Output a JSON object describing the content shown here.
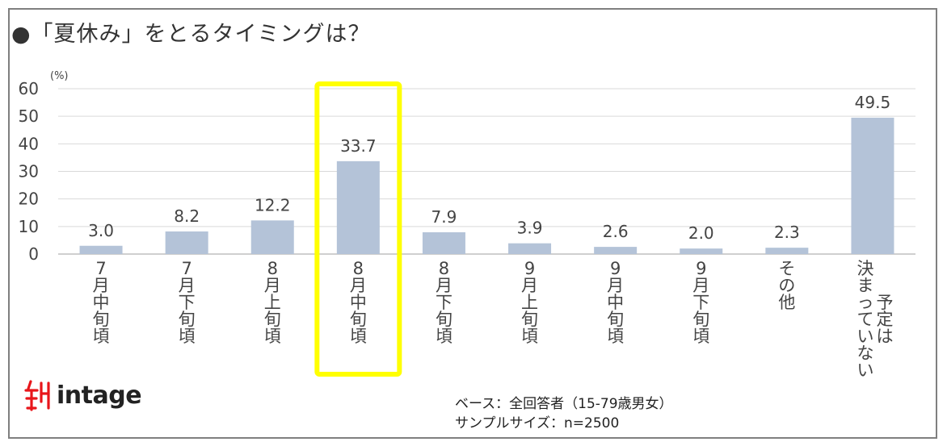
{
  "title": "●「夏休み」をとるタイミングは？",
  "unit_label": "(%)",
  "logo": {
    "text": "intage"
  },
  "notes": {
    "base": "ベース：全回答者（15-79歳男女）",
    "sample": "サンプルサイズ：n=2500"
  },
  "colors": {
    "bar": "#b4c3d8",
    "highlight": "#ffff00",
    "grid": "#d9d9d9"
  },
  "chart_data": {
    "type": "bar",
    "categories": [
      "7月中旬頃",
      "7月下旬頃",
      "8月上旬頃",
      "8月中旬頃",
      "8月下旬頃",
      "9月上旬頃",
      "9月中旬頃",
      "9月下旬頃",
      "その他",
      "決まっていない 予定は"
    ],
    "values": [
      3.0,
      8.2,
      12.2,
      33.7,
      7.9,
      3.9,
      2.6,
      2.0,
      2.3,
      49.5
    ],
    "value_labels": [
      "3.0",
      "8.2",
      "12.2",
      "33.7",
      "7.9",
      "3.9",
      "2.6",
      "2.0",
      "2.3",
      "49.5"
    ],
    "yticks": [
      "0",
      "10",
      "20",
      "30",
      "40",
      "50",
      "60"
    ],
    "ylim": [
      0,
      60
    ],
    "grid": true,
    "highlight_index": 3
  }
}
